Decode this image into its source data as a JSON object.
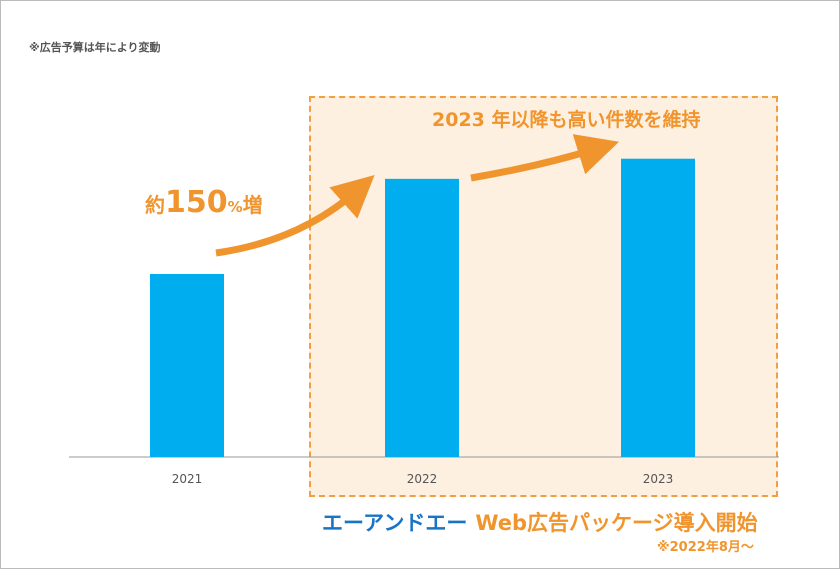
{
  "note": "※広告予算は年により変動",
  "annotations": {
    "growth_prefix": "約",
    "growth_value": "150",
    "growth_unit": "%",
    "growth_suffix": "増",
    "maintain": "2023 年以降も高い件数を維持"
  },
  "footer": {
    "company": "エーアンドエー",
    "package": "Web広告パッケージ導入開始",
    "since": "※2022年8月～"
  },
  "colors": {
    "bar": "#00adef",
    "accent": "#f0952e",
    "highlight_bg": "#fdf0e0",
    "company": "#1a74c6"
  },
  "chart_data": {
    "type": "bar",
    "categories": [
      "2021",
      "2022",
      "2023"
    ],
    "values": [
      100,
      152,
      163
    ],
    "value_note_relative_index": true,
    "grid": false,
    "highlighted_categories": [
      "2022",
      "2023"
    ]
  }
}
